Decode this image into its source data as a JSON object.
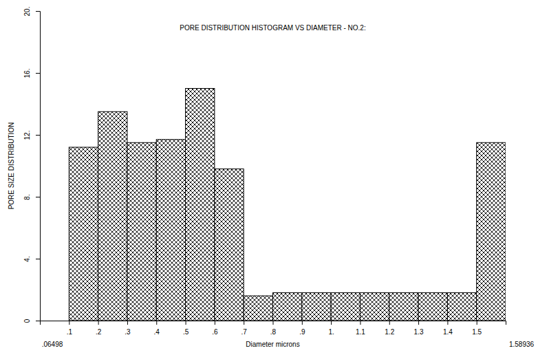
{
  "chart_data": {
    "type": "histogram",
    "title": "PORE DISTRIBUTION HISTOGRAM VS DIAMETER - NO.2:",
    "x_label": "Diameter microns",
    "y_label": "PORE SIZE DISTRIBUTION",
    "annotations": [
      ".06498",
      "1.58936"
    ],
    "bins": [
      0.1,
      0.2,
      0.3,
      0.4,
      0.5,
      0.6,
      0.7,
      0.8,
      0.9,
      1.0,
      1.1,
      1.2,
      1.3,
      1.4,
      1.5,
      1.6
    ],
    "values": [
      11.2,
      13.5,
      11.5,
      11.7,
      15.0,
      9.8,
      1.6,
      1.8,
      1.8,
      1.8,
      1.8,
      1.8,
      1.8,
      1.8,
      11.5
    ],
    "color": "#000000",
    "xlim": [
      0,
      1.6
    ],
    "xticks": [
      {
        "value": 0.1,
        "label": ".1"
      },
      {
        "value": 0.2,
        "label": ".2"
      },
      {
        "value": 0.3,
        "label": ".3"
      },
      {
        "value": 0.4,
        "label": ".4"
      },
      {
        "value": 0.5,
        "label": ".5"
      },
      {
        "value": 0.6,
        "label": ".6"
      },
      {
        "value": 0.7,
        "label": ".7"
      },
      {
        "value": 0.8,
        "label": ".8"
      },
      {
        "value": 0.9,
        "label": ".9"
      },
      {
        "value": 1.0,
        "label": "1."
      },
      1.1,
      1.2,
      1.3,
      1.4,
      1.5
    ],
    "ylim": [
      0,
      20
    ],
    "yticks": [
      0,
      {
        "value": 4,
        "label": "4."
      },
      {
        "value": 8,
        "label": "8."
      },
      {
        "value": 12,
        "label": "12."
      },
      {
        "value": 16,
        "label": "16."
      },
      {
        "value": 20,
        "label": "20."
      }
    ],
    "grid": false
  }
}
